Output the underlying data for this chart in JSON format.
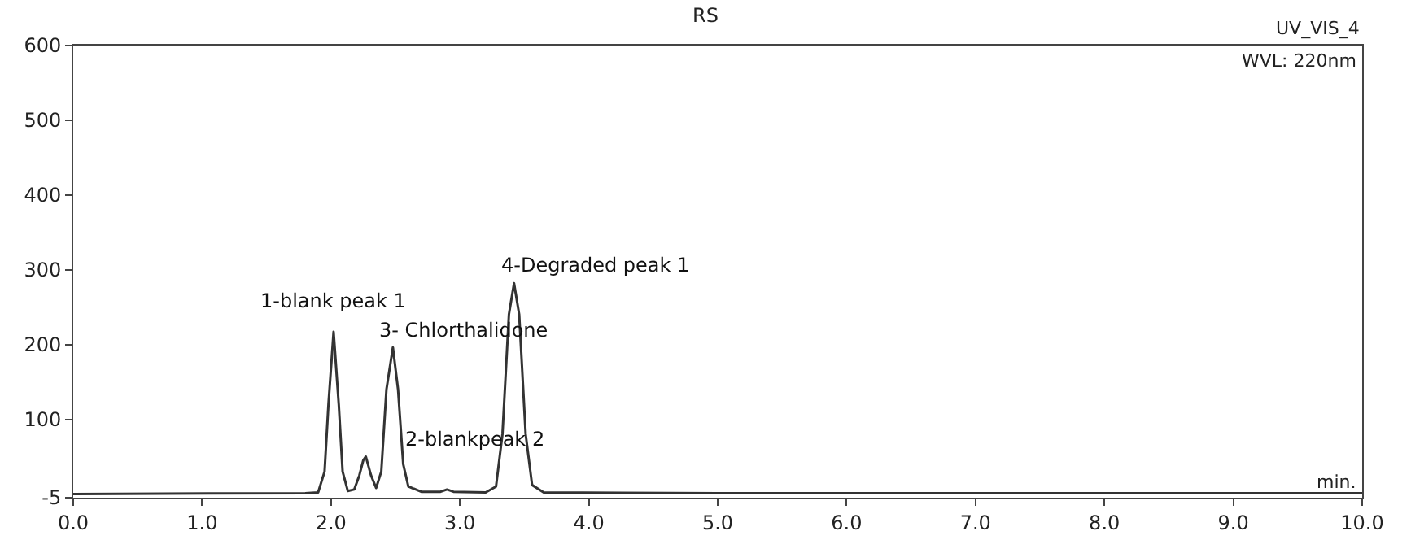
{
  "chart_data": {
    "type": "line",
    "title": "RS",
    "xlabel": "min.",
    "x": [
      0,
      1.8,
      1.9,
      1.95,
      1.98,
      2.02,
      2.06,
      2.09,
      2.13,
      2.18,
      2.22,
      2.25,
      2.27,
      2.31,
      2.35,
      2.39,
      2.43,
      2.48,
      2.52,
      2.56,
      2.6,
      2.7,
      2.85,
      2.9,
      2.95,
      3.2,
      3.28,
      3.33,
      3.38,
      3.42,
      3.46,
      3.51,
      3.56,
      3.65,
      5,
      10
    ],
    "series": [
      {
        "color": "#333333",
        "values": [
          0,
          1,
          2,
          30,
          120,
          217,
          120,
          30,
          4,
          6,
          25,
          45,
          50,
          25,
          8,
          30,
          140,
          196,
          140,
          40,
          10,
          3,
          3,
          6,
          3,
          2,
          10,
          80,
          240,
          282,
          240,
          80,
          12,
          2,
          1,
          1
        ]
      }
    ],
    "annotations": [
      "UV_VIS_4",
      "WVL: 220nm",
      {
        "text": "1-blank peak 1",
        "x": 2.02,
        "y": 217
      },
      {
        "text": "2-blankpeak 2",
        "x": 2.27,
        "y": 50
      },
      {
        "text": "3- Chlorthalidone",
        "x": 2.48,
        "y": 196
      },
      {
        "text": "4-Degraded peak 1",
        "x": 3.42,
        "y": 282
      }
    ],
    "xlim": [
      0,
      10
    ],
    "xticks": [
      {
        "value": 0,
        "label": "0.0"
      },
      {
        "value": 1,
        "label": "1.0"
      },
      {
        "value": 2,
        "label": "2.0"
      },
      {
        "value": 3,
        "label": "3.0"
      },
      {
        "value": 4,
        "label": "4.0"
      },
      {
        "value": 5,
        "label": "5.0"
      },
      {
        "value": 6,
        "label": "6.0"
      },
      {
        "value": 7,
        "label": "7.0"
      },
      {
        "value": 8,
        "label": "8.0"
      },
      {
        "value": 9,
        "label": "9.0"
      },
      {
        "value": 10,
        "label": "10.0"
      }
    ],
    "ylim": [
      -5,
      600
    ],
    "yticks": [
      -5,
      100,
      200,
      300,
      400,
      500,
      600
    ],
    "marker": "none",
    "line_style": "solid"
  }
}
